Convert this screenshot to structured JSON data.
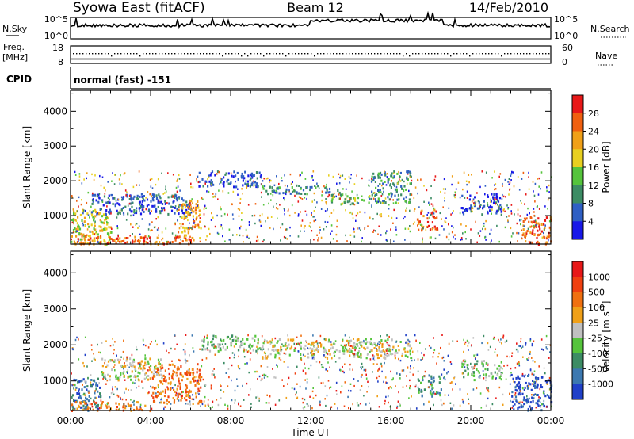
{
  "header": {
    "station": "Syowa East (fitACF)",
    "beam": "Beam 12",
    "date": "14/Feb/2010"
  },
  "noise_panel": {
    "left_label": "N.Sky",
    "left_ticks": [
      "10^5",
      "10^0"
    ],
    "right_label": "N.Search",
    "right_ticks": [
      "10^5",
      "10^0"
    ]
  },
  "freq_panel": {
    "left_label": "Freq.",
    "left_unit": "[MHz]",
    "left_ticks": [
      "18",
      "8"
    ],
    "right_label": "Nave",
    "right_ticks": [
      "60",
      "0"
    ]
  },
  "cpid": {
    "label": "CPID",
    "value": "normal (fast) -151"
  },
  "chart_data": [
    {
      "type": "heatmap",
      "title": "",
      "xlabel": "Time UT",
      "ylabel": "Slant Range [km]",
      "xlim": [
        "00:00",
        "24:00"
      ],
      "ylim": [
        180,
        4600
      ],
      "x_ticks": [
        "00:00",
        "04:00",
        "08:00",
        "12:00",
        "16:00",
        "20:00",
        "00:00"
      ],
      "y_ticks": [
        "1000",
        "2000",
        "3000",
        "4000"
      ],
      "colorbar": {
        "label": "Power [dB]",
        "ticks": [
          "4",
          "8",
          "12",
          "16",
          "20",
          "24",
          "28"
        ],
        "colors": [
          "#1818e8",
          "#2f5fc4",
          "#3c8c64",
          "#55c43c",
          "#e8d020",
          "#f0a018",
          "#f06010",
          "#e81818"
        ]
      },
      "regions": [
        {
          "t0": 0,
          "t1": 2,
          "r0": 200,
          "r1": 1200,
          "level": 4
        },
        {
          "t0": 0,
          "t1": 6,
          "r0": 200,
          "r1": 450,
          "level": 6
        },
        {
          "t0": 1,
          "t1": 6,
          "r0": 1050,
          "r1": 1650,
          "level": 1
        },
        {
          "t0": 5.5,
          "t1": 6.5,
          "r0": 250,
          "r1": 1500,
          "level": 5
        },
        {
          "t0": 6.3,
          "t1": 9.5,
          "r0": 1850,
          "r1": 2300,
          "level": 1
        },
        {
          "t0": 9.5,
          "t1": 13.5,
          "r0": 1650,
          "r1": 1900,
          "level": 2
        },
        {
          "t0": 13,
          "t1": 15,
          "r0": 1350,
          "r1": 1650,
          "level": 3
        },
        {
          "t0": 15,
          "t1": 17,
          "r0": 1400,
          "r1": 2300,
          "level": 2
        },
        {
          "t0": 17.3,
          "t1": 18.3,
          "r0": 600,
          "r1": 1200,
          "level": 6
        },
        {
          "t0": 19.5,
          "t1": 21.5,
          "r0": 1050,
          "r1": 1650,
          "level": 1
        },
        {
          "t0": 22.5,
          "t1": 24,
          "r0": 200,
          "r1": 1000,
          "level": 6
        }
      ]
    },
    {
      "type": "heatmap",
      "title": "",
      "xlabel": "Time UT",
      "ylabel": "Slant Range [km]",
      "xlim": [
        "00:00",
        "24:00"
      ],
      "ylim": [
        180,
        4600
      ],
      "x_ticks": [
        "00:00",
        "04:00",
        "08:00",
        "12:00",
        "16:00",
        "20:00",
        "00:00"
      ],
      "y_ticks": [
        "1000",
        "2000",
        "3000",
        "4000"
      ],
      "colorbar": {
        "label": "Velocity [m s^-1]",
        "ticks": [
          "1000",
          "500",
          "100",
          "25",
          "-25",
          "-100",
          "-500",
          "-1000"
        ],
        "colors": [
          "#2040c8",
          "#3c78b0",
          "#3c8c64",
          "#55c43c",
          "#c0c0c0",
          "#f0a018",
          "#f07010",
          "#f04010",
          "#e81818"
        ]
      },
      "regions": [
        {
          "t0": 0,
          "t1": 1.5,
          "r0": 200,
          "r1": 1100,
          "level": 1
        },
        {
          "t0": 0,
          "t1": 4,
          "r0": 200,
          "r1": 450,
          "level": 6
        },
        {
          "t0": 1.5,
          "t1": 4.5,
          "r0": 1050,
          "r1": 1650,
          "level": 4
        },
        {
          "t0": 4,
          "t1": 6.5,
          "r0": 400,
          "r1": 1500,
          "level": 6
        },
        {
          "t0": 6.5,
          "t1": 9.5,
          "r0": 1850,
          "r1": 2300,
          "level": 3
        },
        {
          "t0": 9.5,
          "t1": 17,
          "r0": 1650,
          "r1": 2200,
          "level": 4
        },
        {
          "t0": 17.3,
          "t1": 18.5,
          "r0": 600,
          "r1": 1200,
          "level": 2
        },
        {
          "t0": 19.5,
          "t1": 21.5,
          "r0": 1050,
          "r1": 1600,
          "level": 3
        },
        {
          "t0": 22,
          "t1": 24,
          "r0": 200,
          "r1": 1200,
          "level": 0
        }
      ]
    }
  ]
}
